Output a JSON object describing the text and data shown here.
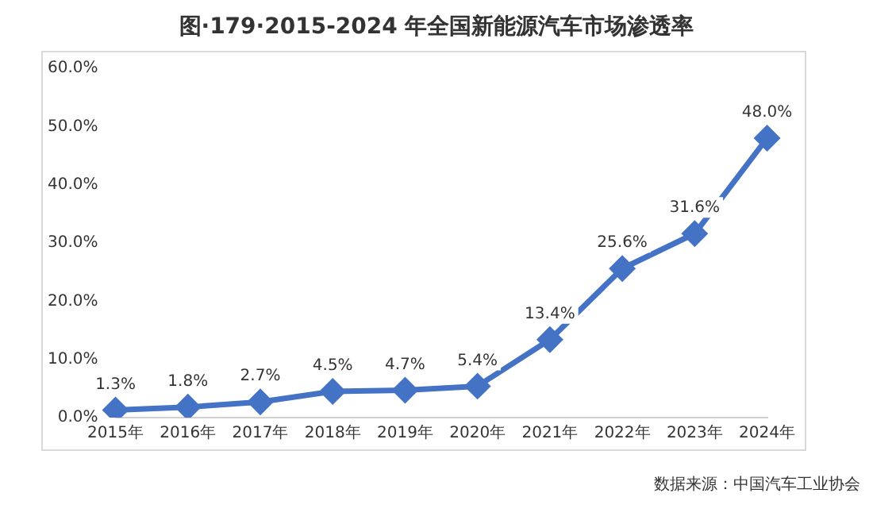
{
  "chart_data": {
    "type": "line",
    "title": "图·179·2015-2024 年全国新能源汽车市场渗透率",
    "categories": [
      "2015年",
      "2016年",
      "2017年",
      "2018年",
      "2019年",
      "2020年",
      "2021年",
      "2022年",
      "2023年",
      "2024年"
    ],
    "series": [
      {
        "color": "#4472c4",
        "values": [
          1.3,
          1.8,
          2.7,
          4.5,
          4.7,
          5.4,
          13.4,
          25.6,
          31.6,
          48.0
        ],
        "value_labels": [
          "1.3%",
          "1.8%",
          "2.7%",
          "4.5%",
          "4.7%",
          "5.4%",
          "13.4%",
          "25.6%",
          "31.6%",
          "48.0%"
        ]
      }
    ],
    "ylim": [
      0,
      60
    ],
    "yticks": [
      {
        "value": 0,
        "label": "0.0%"
      },
      {
        "value": 10,
        "label": "10.0%"
      },
      {
        "value": 20,
        "label": "20.0%"
      },
      {
        "value": 30,
        "label": "30.0%"
      },
      {
        "value": 40,
        "label": "40.0%"
      },
      {
        "value": 50,
        "label": "50.0%"
      },
      {
        "value": 60,
        "label": "60.0%"
      }
    ],
    "grid": false,
    "legend": false,
    "marker": "diamond",
    "line_style": "solid",
    "annotations": [
      "数据来源：中国汽车工业协会"
    ]
  }
}
